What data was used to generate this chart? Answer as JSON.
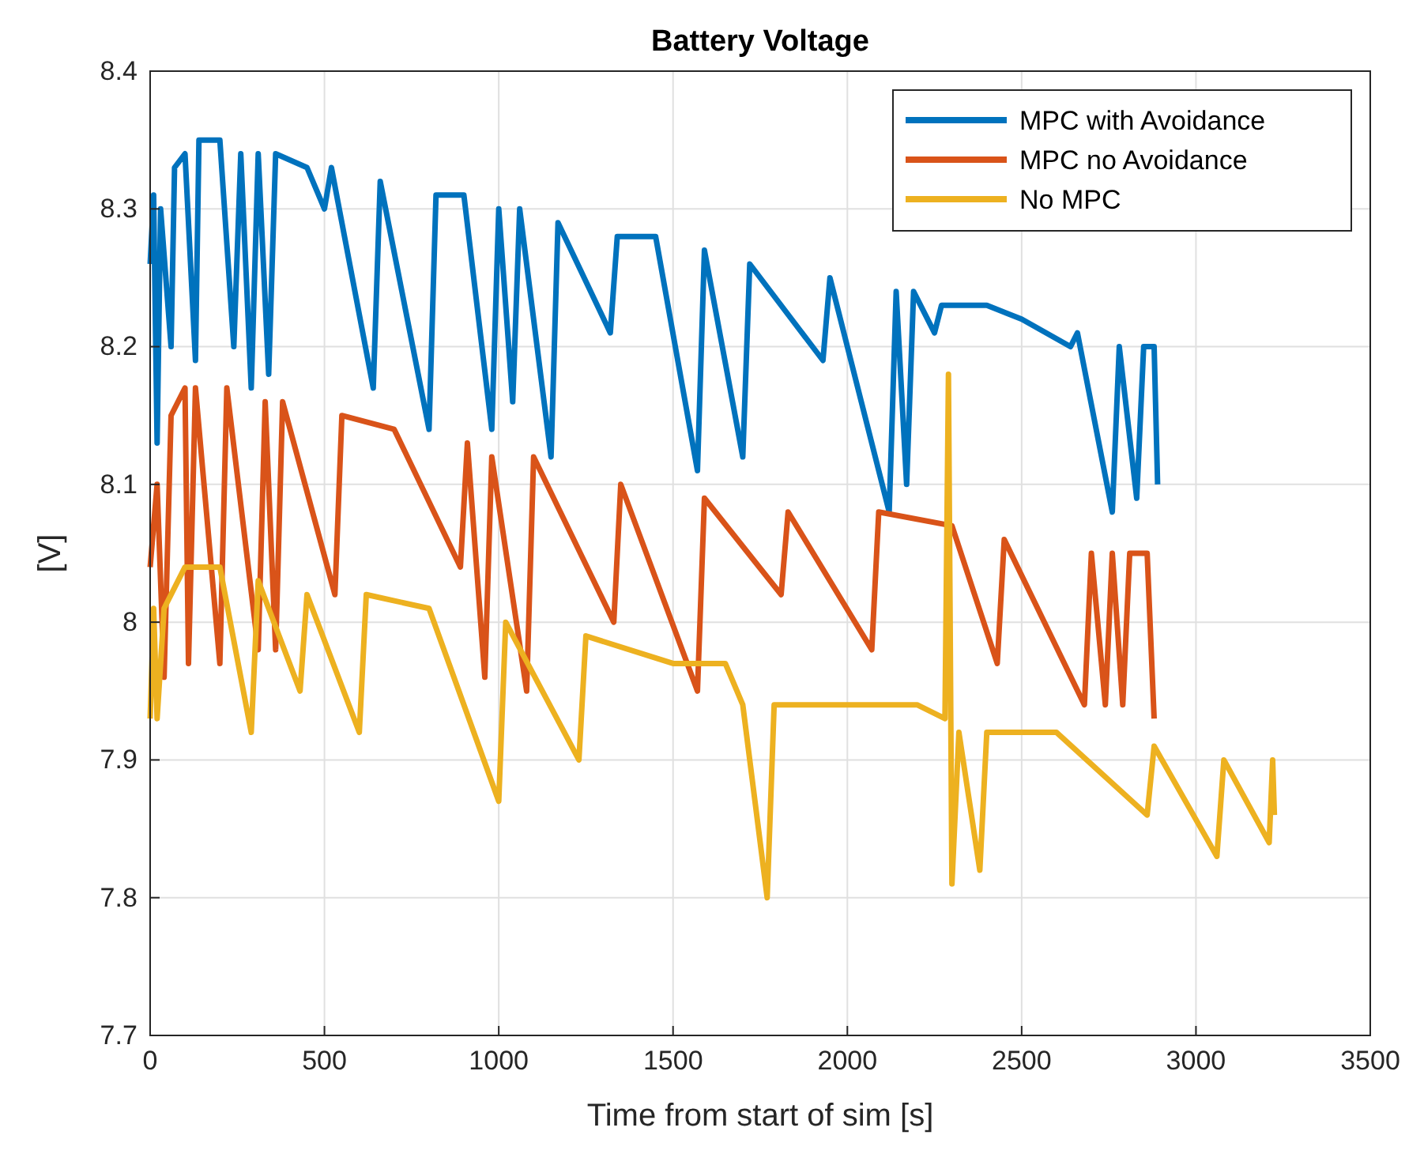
{
  "chart_data": {
    "type": "line",
    "title": "Battery Voltage",
    "xlabel": "Time from start of sim [s]",
    "ylabel": "[V]",
    "xlim": [
      0,
      3500
    ],
    "xticks": [
      0,
      500,
      1000,
      1500,
      2000,
      2500,
      3000,
      3500
    ],
    "ylim": [
      7.7,
      8.4
    ],
    "yticks": [
      7.7,
      7.8,
      7.9,
      8,
      8.1,
      8.2,
      8.3,
      8.4
    ],
    "grid": true,
    "legend": "top right",
    "line_style": "solid",
    "marker": "none",
    "series": [
      {
        "name": "MPC with Avoidance",
        "color": "#0072bd",
        "x": [
          0,
          10,
          20,
          30,
          60,
          70,
          100,
          130,
          140,
          200,
          240,
          260,
          290,
          310,
          340,
          360,
          450,
          500,
          520,
          640,
          660,
          800,
          820,
          900,
          980,
          1000,
          1040,
          1060,
          1150,
          1170,
          1320,
          1340,
          1450,
          1570,
          1590,
          1700,
          1720,
          1930,
          1950,
          2120,
          2140,
          2170,
          2190,
          2250,
          2270,
          2400,
          2500,
          2640,
          2660,
          2760,
          2780,
          2830,
          2850,
          2880,
          2890
        ],
        "values": [
          8.26,
          8.31,
          8.13,
          8.3,
          8.2,
          8.33,
          8.34,
          8.19,
          8.35,
          8.35,
          8.2,
          8.34,
          8.17,
          8.34,
          8.18,
          8.34,
          8.33,
          8.3,
          8.33,
          8.17,
          8.32,
          8.14,
          8.31,
          8.31,
          8.14,
          8.3,
          8.16,
          8.3,
          8.12,
          8.29,
          8.21,
          8.28,
          8.28,
          8.11,
          8.27,
          8.12,
          8.26,
          8.19,
          8.25,
          8.08,
          8.24,
          8.1,
          8.24,
          8.21,
          8.23,
          8.23,
          8.22,
          8.2,
          8.21,
          8.08,
          8.2,
          8.09,
          8.2,
          8.2,
          8.1
        ]
      },
      {
        "name": "MPC no Avoidance",
        "color": "#d95319",
        "x": [
          0,
          20,
          40,
          60,
          100,
          110,
          130,
          200,
          220,
          310,
          330,
          360,
          380,
          530,
          550,
          700,
          890,
          910,
          960,
          980,
          1080,
          1100,
          1330,
          1350,
          1570,
          1590,
          1810,
          1830,
          2070,
          2090,
          2300,
          2430,
          2450,
          2680,
          2700,
          2740,
          2760,
          2790,
          2810,
          2860,
          2880
        ],
        "values": [
          8.04,
          8.1,
          7.96,
          8.15,
          8.17,
          7.97,
          8.17,
          7.97,
          8.17,
          7.98,
          8.16,
          7.98,
          8.16,
          8.02,
          8.15,
          8.14,
          8.04,
          8.13,
          7.96,
          8.12,
          7.95,
          8.12,
          8,
          8.1,
          7.95,
          8.09,
          8.02,
          8.08,
          7.98,
          8.08,
          8.07,
          7.97,
          8.06,
          7.94,
          8.05,
          7.94,
          8.05,
          7.94,
          8.05,
          8.05,
          7.93
        ]
      },
      {
        "name": "No MPC",
        "color": "#edb120",
        "x": [
          0,
          10,
          20,
          40,
          100,
          200,
          290,
          310,
          430,
          450,
          600,
          620,
          800,
          1000,
          1020,
          1230,
          1250,
          1500,
          1650,
          1700,
          1770,
          1790,
          2000,
          2200,
          2280,
          2290,
          2300,
          2320,
          2380,
          2400,
          2600,
          2860,
          2880,
          3060,
          3080,
          3210,
          3220,
          3225
        ],
        "values": [
          7.93,
          8.01,
          7.93,
          8.01,
          8.04,
          8.04,
          7.92,
          8.03,
          7.95,
          8.02,
          7.92,
          8.02,
          8.01,
          7.87,
          8,
          7.9,
          7.99,
          7.97,
          7.97,
          7.94,
          7.8,
          7.94,
          7.94,
          7.94,
          7.93,
          8.18,
          7.81,
          7.92,
          7.82,
          7.92,
          7.92,
          7.86,
          7.91,
          7.83,
          7.9,
          7.84,
          7.9,
          7.86
        ]
      }
    ]
  }
}
